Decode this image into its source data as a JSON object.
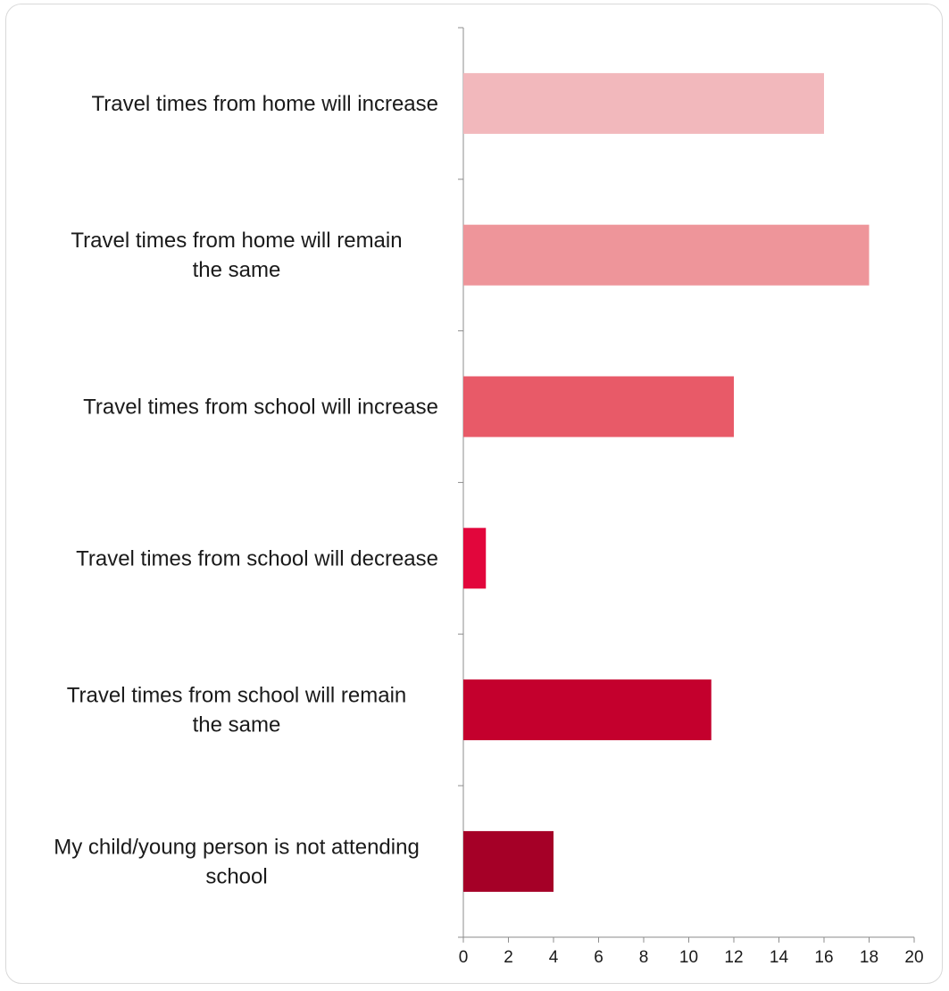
{
  "chart_data": {
    "type": "bar",
    "orientation": "horizontal",
    "categories": [
      "Travel times from home will increase",
      "Travel times from home will remain the same",
      "Travel times from school will increase",
      "Travel times from school will decrease",
      "Travel times from school will remain the same",
      "My child/young person is not attending school"
    ],
    "category_lines": [
      [
        "Travel times from home will increase"
      ],
      [
        "Travel times from home will remain",
        "the same"
      ],
      [
        "Travel times from school will increase"
      ],
      [
        "Travel times from school will decrease"
      ],
      [
        "Travel times from school will remain",
        "the same"
      ],
      [
        "My child/young person is not attending",
        "school"
      ]
    ],
    "values": [
      16,
      18,
      12,
      1,
      11,
      4
    ],
    "colors": [
      "#f2b8bc",
      "#ee959a",
      "#e85a68",
      "#e2063c",
      "#c4002d",
      "#a50027"
    ],
    "xlim": [
      0,
      20
    ],
    "xticks": [
      "0",
      "2",
      "4",
      "6",
      "8",
      "10",
      "12",
      "14",
      "16",
      "18",
      "20"
    ],
    "title": "",
    "xlabel": "",
    "ylabel": "",
    "grid": false,
    "legend": "none"
  }
}
